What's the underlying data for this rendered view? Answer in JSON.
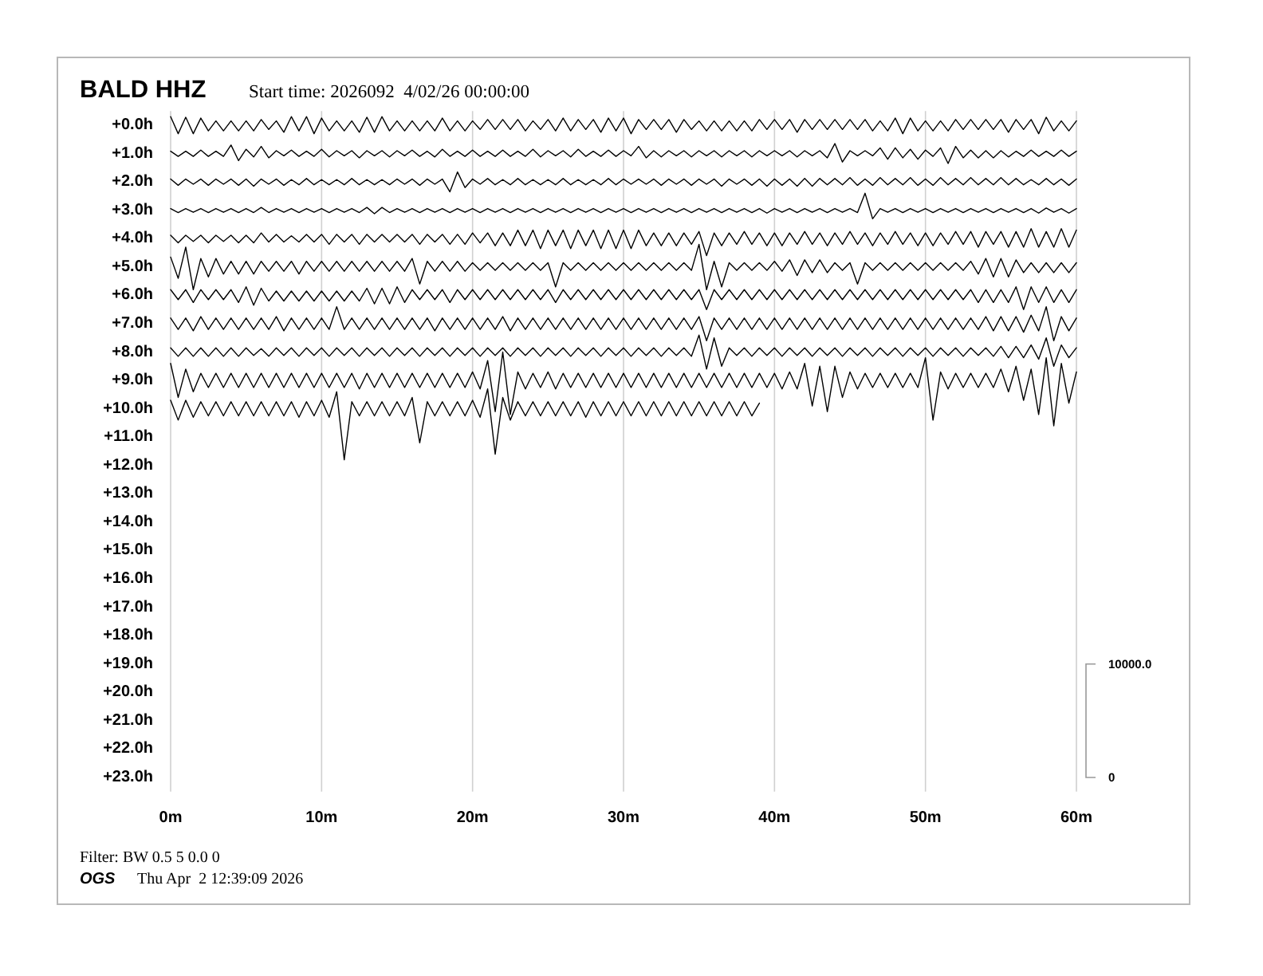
{
  "chart_data": {
    "type": "line",
    "title": "BALD HHZ",
    "subtitle": "Start time: 2026092  4/02/26 00:00:00",
    "annotations": [
      "Filter: BW 0.5 5 0.0 0",
      "OGS",
      "Thu Apr  2 12:39:09 2026"
    ],
    "x": [
      0,
      0.5,
      1,
      1.5,
      2,
      2.5,
      3,
      3.5,
      4,
      4.5,
      5,
      5.5,
      6,
      6.5,
      7,
      7.5,
      8,
      8.5,
      9,
      9.5,
      10,
      10.5,
      11,
      11.5,
      12,
      12.5,
      13,
      13.5,
      14,
      14.5,
      15,
      15.5,
      16,
      16.5,
      17,
      17.5,
      18,
      18.5,
      19,
      19.5,
      20,
      20.5,
      21,
      21.5,
      22,
      22.5,
      23,
      23.5,
      24,
      24.5,
      25,
      25.5,
      26,
      26.5,
      27,
      27.5,
      28,
      28.5,
      29,
      29.5,
      30,
      30.5,
      31,
      31.5,
      32,
      32.5,
      33,
      33.5,
      34,
      34.5,
      35,
      35.5,
      36,
      36.5,
      37,
      37.5,
      38,
      38.5,
      39,
      39.5,
      40,
      40.5,
      41,
      41.5,
      42,
      42.5,
      43,
      43.5,
      44,
      44.5,
      45,
      45.5,
      46,
      46.5,
      47,
      47.5,
      48,
      48.5,
      49,
      49.5,
      50,
      50.5,
      51,
      51.5,
      52,
      52.5,
      53,
      53.5,
      54,
      54.5,
      55,
      55.5,
      56,
      56.5,
      57,
      57.5,
      58,
      58.5,
      59,
      59.5,
      60
    ],
    "xlim": [
      0,
      60
    ],
    "xticks": [
      {
        "value": 0,
        "label": "0m"
      },
      {
        "value": 10,
        "label": "10m"
      },
      {
        "value": 20,
        "label": "20m"
      },
      {
        "value": 30,
        "label": "30m"
      },
      {
        "value": 40,
        "label": "40m"
      },
      {
        "value": 50,
        "label": "50m"
      },
      {
        "value": 60,
        "label": "60m"
      }
    ],
    "ylim": [
      23.5,
      -0.5
    ],
    "yticks": [
      {
        "value": 0,
        "label": "+0.0h"
      },
      {
        "value": 1,
        "label": "+1.0h"
      },
      {
        "value": 2,
        "label": "+2.0h"
      },
      {
        "value": 3,
        "label": "+3.0h"
      },
      {
        "value": 4,
        "label": "+4.0h"
      },
      {
        "value": 5,
        "label": "+5.0h"
      },
      {
        "value": 6,
        "label": "+6.0h"
      },
      {
        "value": 7,
        "label": "+7.0h"
      },
      {
        "value": 8,
        "label": "+8.0h"
      },
      {
        "value": 9,
        "label": "+9.0h"
      },
      {
        "value": 10,
        "label": "+10.0h"
      },
      {
        "value": 11,
        "label": "+11.0h"
      },
      {
        "value": 12,
        "label": "+12.0h"
      },
      {
        "value": 13,
        "label": "+13.0h"
      },
      {
        "value": 14,
        "label": "+14.0h"
      },
      {
        "value": 15,
        "label": "+15.0h"
      },
      {
        "value": 16,
        "label": "+16.0h"
      },
      {
        "value": 17,
        "label": "+17.0h"
      },
      {
        "value": 18,
        "label": "+18.0h"
      },
      {
        "value": 19,
        "label": "+19.0h"
      },
      {
        "value": 20,
        "label": "+20.0h"
      },
      {
        "value": 21,
        "label": "+21.0h"
      },
      {
        "value": 22,
        "label": "+22.0h"
      },
      {
        "value": 23,
        "label": "+23.0h"
      }
    ],
    "y2lim": [
      -1250,
      58750
    ],
    "y2ticks": [
      0,
      {
        "value": 10000,
        "label": "10000.0"
      }
    ],
    "grid": "x",
    "series": [
      {
        "color": "#000000",
        "values": [
          -0.3,
          0.3,
          -0.28,
          0.3,
          -0.25,
          0.2,
          -0.15,
          0.2,
          -0.15,
          0.2,
          -0.15,
          0.2,
          -0.2,
          0.15,
          -0.15,
          0.25,
          -0.3,
          0.2,
          -0.3,
          0.3,
          -0.25,
          0.2,
          -0.15,
          0.2,
          -0.15,
          0.25,
          -0.28,
          0.25,
          -0.3,
          0.2,
          -0.15,
          0.2,
          -0.15,
          0.2,
          -0.15,
          0.2,
          -0.25,
          0.2,
          -0.15,
          0.2,
          -0.15,
          0.15,
          -0.2,
          0.15,
          -0.2,
          0.15,
          -0.2,
          0.2,
          -0.15,
          0.15,
          -0.2,
          0.2,
          -0.25,
          0.2,
          -0.2,
          0.15,
          -0.2,
          0.25,
          -0.25,
          0.2,
          -0.25,
          0.3,
          -0.2,
          0.15,
          -0.2,
          0.15,
          -0.2,
          0.25,
          -0.2,
          0.15,
          -0.15,
          0.2,
          -0.15,
          0.2,
          -0.15,
          0.2,
          -0.15,
          0.2,
          -0.2,
          0.15,
          -0.2,
          0.15,
          -0.2,
          0.25,
          -0.2,
          0.15,
          -0.2,
          0.15,
          -0.2,
          0.15,
          -0.2,
          0.15,
          -0.2,
          0.2,
          -0.15,
          0.2,
          -0.25,
          0.3,
          -0.25,
          0.2,
          -0.15,
          0.2,
          -0.15,
          0.2,
          -0.2,
          0.15,
          -0.2,
          0.15,
          -0.2,
          0.15,
          -0.2,
          0.25,
          -0.2,
          0.15,
          -0.2,
          0.3,
          -0.28,
          0.2,
          -0.15,
          0.2,
          -0.15
        ]
      },
      {
        "color": "#000000",
        "values": [
          0.92,
          1.1,
          0.92,
          1.1,
          0.88,
          1.1,
          0.92,
          1.1,
          0.7,
          1.25,
          0.85,
          1.12,
          0.75,
          1.15,
          0.9,
          1.08,
          0.88,
          1.1,
          0.92,
          1.1,
          0.85,
          1.12,
          0.9,
          1.08,
          0.9,
          1.15,
          0.9,
          1.08,
          0.9,
          1.12,
          0.9,
          1.08,
          0.88,
          1.1,
          0.92,
          1.12,
          0.85,
          1.1,
          0.92,
          1.1,
          0.88,
          1.1,
          0.92,
          1.1,
          0.88,
          1.1,
          0.92,
          1.1,
          0.85,
          1.12,
          0.9,
          1.08,
          0.9,
          1.12,
          0.85,
          1.1,
          0.92,
          1.1,
          0.88,
          1.1,
          0.9,
          1.08,
          0.75,
          1.15,
          0.9,
          1.12,
          0.9,
          1.08,
          0.9,
          1.12,
          0.9,
          1.08,
          0.9,
          1.12,
          0.9,
          1.08,
          0.9,
          1.12,
          0.9,
          1.08,
          0.9,
          1.08,
          0.9,
          1.12,
          0.9,
          1.08,
          0.9,
          1.15,
          0.65,
          1.3,
          0.9,
          1.08,
          0.9,
          1.08,
          0.8,
          1.2,
          0.8,
          1.15,
          0.85,
          1.2,
          0.88,
          1.1,
          0.8,
          1.35,
          0.75,
          1.15,
          0.88,
          1.15,
          0.9,
          1.15,
          0.9,
          1.12,
          0.92,
          1.1,
          0.88,
          1.1,
          0.92,
          1.1,
          0.88,
          1.1,
          0.92
        ]
      },
      {
        "color": "#000000",
        "values": [
          1.9,
          2.12,
          1.9,
          2.08,
          1.9,
          2.12,
          1.9,
          2.08,
          1.9,
          2.12,
          1.9,
          2.15,
          1.9,
          2.08,
          1.9,
          2.12,
          1.92,
          2.1,
          1.88,
          2.1,
          1.92,
          2.1,
          1.92,
          2.1,
          1.88,
          2.1,
          1.92,
          2.1,
          1.92,
          2.1,
          1.9,
          2.08,
          1.9,
          2.12,
          1.9,
          2.08,
          1.9,
          2.35,
          1.65,
          2.2,
          1.9,
          2.08,
          1.88,
          2.1,
          1.92,
          2.1,
          1.88,
          2.1,
          1.92,
          2.1,
          1.92,
          2.1,
          1.88,
          2.1,
          1.92,
          2.1,
          1.92,
          2.1,
          1.88,
          2.1,
          1.9,
          2.08,
          1.9,
          2.08,
          1.9,
          2.12,
          1.9,
          2.08,
          1.9,
          2.12,
          1.9,
          2.08,
          1.9,
          2.15,
          1.9,
          2.08,
          1.9,
          2.12,
          1.9,
          2.15,
          1.9,
          2.12,
          1.9,
          2.15,
          1.88,
          2.15,
          1.88,
          2.1,
          1.88,
          2.1,
          1.85,
          2.12,
          1.9,
          2.12,
          1.85,
          2.1,
          1.88,
          2.1,
          1.85,
          2.12,
          1.9,
          2.12,
          1.85,
          2.1,
          1.88,
          2.1,
          1.85,
          2.1,
          1.88,
          2.1,
          1.85,
          2.1,
          1.88,
          2.1,
          1.92,
          2.1,
          1.88,
          2.1,
          1.9,
          2.12,
          1.9
        ]
      },
      {
        "color": "#000000",
        "values": [
          2.94,
          3.08,
          2.94,
          3.07,
          2.94,
          3.08,
          2.94,
          3.07,
          2.94,
          3.08,
          2.94,
          3.08,
          2.9,
          3.08,
          2.94,
          3.07,
          2.94,
          3.08,
          2.94,
          3.07,
          2.94,
          3.08,
          2.94,
          3.07,
          2.94,
          3.08,
          2.9,
          3.12,
          2.9,
          3.08,
          2.94,
          3.07,
          2.94,
          3.08,
          2.94,
          3.07,
          2.94,
          3.08,
          2.94,
          3.07,
          2.94,
          3.08,
          2.94,
          3.07,
          2.94,
          3.08,
          2.94,
          3.07,
          2.94,
          3.08,
          2.94,
          3.07,
          2.94,
          3.08,
          2.94,
          3.07,
          2.94,
          3.08,
          2.94,
          3.07,
          2.94,
          3.08,
          2.94,
          3.07,
          2.94,
          3.08,
          2.94,
          3.07,
          2.94,
          3.08,
          2.94,
          3.07,
          2.94,
          3.08,
          2.94,
          3.07,
          2.94,
          3.08,
          2.94,
          3.1,
          2.94,
          3.07,
          2.94,
          3.08,
          2.94,
          3.07,
          2.94,
          3.08,
          2.94,
          3.07,
          2.94,
          3.08,
          2.4,
          3.3,
          2.94,
          3.07,
          2.94,
          3.08,
          2.94,
          3.07,
          2.94,
          3.08,
          2.94,
          3.07,
          2.94,
          3.08,
          2.94,
          3.07,
          2.94,
          3.08,
          2.94,
          3.07,
          2.94,
          3.08,
          2.94,
          3.1,
          2.92,
          3.07,
          2.94,
          3.1,
          2.94
        ]
      },
      {
        "color": "#000000",
        "values": [
          3.88,
          4.15,
          3.88,
          4.1,
          3.88,
          4.15,
          3.88,
          4.1,
          3.88,
          4.15,
          3.88,
          4.15,
          3.8,
          4.12,
          3.85,
          4.12,
          3.9,
          4.12,
          3.85,
          4.12,
          3.85,
          4.2,
          3.85,
          4.12,
          3.85,
          4.2,
          3.85,
          4.12,
          3.85,
          4.12,
          3.85,
          4.12,
          3.85,
          4.2,
          3.85,
          4.12,
          3.85,
          4.2,
          3.85,
          4.2,
          3.8,
          4.15,
          3.8,
          4.25,
          3.8,
          4.25,
          3.7,
          4.25,
          3.7,
          4.35,
          3.7,
          4.25,
          3.7,
          4.35,
          3.7,
          4.25,
          3.7,
          4.35,
          3.7,
          4.35,
          3.7,
          4.35,
          3.7,
          4.25,
          3.8,
          4.25,
          3.8,
          4.25,
          3.8,
          4.2,
          3.75,
          4.6,
          3.8,
          4.25,
          3.8,
          4.2,
          3.75,
          4.2,
          3.8,
          4.25,
          3.8,
          4.25,
          3.8,
          4.2,
          3.75,
          4.2,
          3.8,
          4.25,
          3.8,
          4.2,
          3.75,
          4.2,
          3.8,
          4.25,
          3.8,
          4.2,
          3.75,
          4.2,
          3.8,
          4.25,
          3.8,
          4.25,
          3.8,
          4.2,
          3.75,
          4.2,
          3.75,
          4.3,
          3.75,
          4.2,
          3.75,
          4.3,
          3.75,
          4.3,
          3.65,
          4.3,
          3.75,
          4.3,
          3.65,
          4.3,
          3.7
        ]
      },
      {
        "color": "#000000",
        "values": [
          4.65,
          5.4,
          4.3,
          5.8,
          4.7,
          5.35,
          4.7,
          5.25,
          4.8,
          5.25,
          4.8,
          5.25,
          4.8,
          5.15,
          4.8,
          5.15,
          4.8,
          5.25,
          4.8,
          5.15,
          4.8,
          5.15,
          4.8,
          5.15,
          4.8,
          5.15,
          4.8,
          5.15,
          4.8,
          5.15,
          4.8,
          5.15,
          4.7,
          5.6,
          4.8,
          5.15,
          4.8,
          5.15,
          4.8,
          5.15,
          4.85,
          5.12,
          4.85,
          5.12,
          4.85,
          5.12,
          4.85,
          5.12,
          4.85,
          5.12,
          4.85,
          5.7,
          4.85,
          5.12,
          4.85,
          5.12,
          4.85,
          5.12,
          4.85,
          5.12,
          4.85,
          5.12,
          4.85,
          5.12,
          4.85,
          5.12,
          4.85,
          5.12,
          4.85,
          5.12,
          4.2,
          5.8,
          4.8,
          5.7,
          4.85,
          5.12,
          4.85,
          5.12,
          4.85,
          5.12,
          4.8,
          5.15,
          4.75,
          5.3,
          4.75,
          5.2,
          4.75,
          5.2,
          4.85,
          5.12,
          4.85,
          5.6,
          4.85,
          5.12,
          4.85,
          5.12,
          4.85,
          5.12,
          4.85,
          5.12,
          4.85,
          5.12,
          4.85,
          5.12,
          4.85,
          5.12,
          4.8,
          5.25,
          4.7,
          5.35,
          4.7,
          5.35,
          4.75,
          5.2,
          4.85,
          5.2,
          4.85,
          5.2,
          4.85,
          5.2,
          4.85
        ]
      },
      {
        "color": "#000000",
        "values": [
          5.8,
          6.15,
          5.8,
          6.25,
          5.8,
          6.15,
          5.8,
          6.15,
          5.8,
          6.25,
          5.7,
          6.35,
          5.75,
          6.2,
          5.85,
          6.2,
          5.85,
          6.2,
          5.85,
          6.2,
          5.85,
          6.2,
          5.85,
          6.2,
          5.85,
          6.2,
          5.75,
          6.3,
          5.75,
          6.3,
          5.7,
          6.25,
          5.8,
          6.15,
          5.8,
          6.15,
          5.8,
          6.25,
          5.8,
          6.15,
          5.8,
          6.15,
          5.8,
          6.15,
          5.8,
          6.15,
          5.8,
          6.15,
          5.8,
          6.15,
          5.8,
          6.25,
          5.8,
          6.15,
          5.8,
          6.15,
          5.8,
          6.15,
          5.8,
          6.15,
          5.8,
          6.15,
          5.8,
          6.15,
          5.8,
          6.15,
          5.8,
          6.15,
          5.8,
          6.15,
          5.8,
          6.5,
          5.8,
          6.15,
          5.8,
          6.15,
          5.8,
          6.15,
          5.8,
          6.15,
          5.8,
          6.15,
          5.8,
          6.15,
          5.8,
          6.15,
          5.8,
          6.15,
          5.8,
          6.15,
          5.8,
          6.15,
          5.8,
          6.15,
          5.8,
          6.15,
          5.8,
          6.15,
          5.8,
          6.15,
          5.8,
          6.15,
          5.8,
          6.15,
          5.8,
          6.15,
          5.8,
          6.25,
          5.8,
          6.25,
          5.8,
          6.25,
          5.7,
          6.5,
          5.7,
          6.25,
          5.7,
          6.25,
          5.8,
          6.25,
          5.8
        ]
      },
      {
        "color": "#000000",
        "values": [
          6.8,
          7.2,
          6.8,
          7.25,
          6.75,
          7.2,
          6.8,
          7.2,
          6.8,
          7.2,
          6.8,
          7.2,
          6.8,
          7.2,
          6.75,
          7.25,
          6.8,
          7.2,
          6.8,
          7.2,
          6.8,
          7.2,
          6.4,
          7.2,
          6.8,
          7.2,
          6.8,
          7.2,
          6.8,
          7.2,
          6.8,
          7.2,
          6.8,
          7.2,
          6.8,
          7.25,
          6.8,
          7.2,
          6.8,
          7.2,
          6.8,
          7.2,
          6.8,
          7.2,
          6.75,
          7.25,
          6.8,
          7.2,
          6.8,
          7.2,
          6.8,
          7.2,
          6.8,
          7.2,
          6.8,
          7.2,
          6.8,
          7.2,
          6.8,
          7.2,
          6.8,
          7.2,
          6.8,
          7.2,
          6.8,
          7.2,
          6.8,
          7.2,
          6.8,
          7.2,
          6.75,
          7.6,
          6.8,
          7.2,
          6.8,
          7.2,
          6.8,
          7.2,
          6.8,
          7.2,
          6.8,
          7.2,
          6.8,
          7.2,
          6.8,
          7.2,
          6.8,
          7.2,
          6.8,
          7.2,
          6.8,
          7.2,
          6.8,
          7.2,
          6.8,
          7.2,
          6.8,
          7.2,
          6.8,
          7.2,
          6.8,
          7.2,
          6.8,
          7.2,
          6.8,
          7.2,
          6.8,
          7.2,
          6.75,
          7.25,
          6.75,
          7.25,
          6.75,
          7.3,
          6.7,
          7.25,
          6.4,
          7.6,
          6.75,
          7.25,
          6.8
        ]
      },
      {
        "color": "#000000",
        "values": [
          7.85,
          8.15,
          7.85,
          8.15,
          7.85,
          8.15,
          7.85,
          8.15,
          7.85,
          8.15,
          7.85,
          8.12,
          7.88,
          8.15,
          7.85,
          8.12,
          7.85,
          8.15,
          7.85,
          8.12,
          7.85,
          8.15,
          7.85,
          8.12,
          7.85,
          8.15,
          7.85,
          8.12,
          7.85,
          8.15,
          7.85,
          8.12,
          7.85,
          8.15,
          7.85,
          8.12,
          7.85,
          8.15,
          7.85,
          8.12,
          7.85,
          8.15,
          7.85,
          8.12,
          7.85,
          8.15,
          7.85,
          8.12,
          7.85,
          8.15,
          7.85,
          8.12,
          7.85,
          8.15,
          7.85,
          8.12,
          7.85,
          8.15,
          7.85,
          8.12,
          7.85,
          8.15,
          7.85,
          8.12,
          7.85,
          8.15,
          7.85,
          8.12,
          7.85,
          8.15,
          7.4,
          8.6,
          7.5,
          8.5,
          7.85,
          8.12,
          7.85,
          8.15,
          7.85,
          8.12,
          7.85,
          8.15,
          7.85,
          8.12,
          7.85,
          8.15,
          7.85,
          8.12,
          7.85,
          8.15,
          7.85,
          8.12,
          7.85,
          8.15,
          7.85,
          8.12,
          7.85,
          8.15,
          7.85,
          8.12,
          7.85,
          8.15,
          7.85,
          8.12,
          7.85,
          8.15,
          7.85,
          8.12,
          7.85,
          8.15,
          7.8,
          8.2,
          7.8,
          8.2,
          7.75,
          8.25,
          7.5,
          8.5,
          7.75,
          8.2,
          7.85
        ]
      },
      {
        "color": "#000000",
        "values": [
          8.4,
          9.6,
          8.6,
          9.4,
          8.75,
          9.25,
          8.75,
          9.25,
          8.75,
          9.25,
          8.75,
          9.25,
          8.75,
          9.25,
          8.75,
          9.25,
          8.75,
          9.25,
          8.75,
          9.25,
          8.75,
          9.25,
          8.75,
          9.25,
          8.75,
          9.3,
          8.75,
          9.25,
          8.75,
          9.25,
          8.75,
          9.25,
          8.75,
          9.25,
          8.75,
          9.25,
          8.75,
          9.25,
          8.75,
          9.25,
          8.7,
          9.3,
          8.3,
          10.1,
          8.0,
          10.2,
          8.7,
          9.3,
          8.75,
          9.25,
          8.7,
          9.3,
          8.75,
          9.25,
          8.75,
          9.25,
          8.75,
          9.25,
          8.75,
          9.25,
          8.75,
          9.25,
          8.75,
          9.25,
          8.75,
          9.25,
          8.75,
          9.25,
          8.75,
          9.25,
          8.75,
          9.25,
          8.75,
          9.25,
          8.75,
          9.25,
          8.75,
          9.25,
          8.75,
          9.25,
          8.75,
          9.3,
          8.7,
          9.3,
          8.4,
          9.9,
          8.5,
          10.1,
          8.5,
          9.6,
          8.7,
          9.3,
          8.75,
          9.25,
          8.75,
          9.25,
          8.75,
          9.25,
          8.75,
          9.25,
          8.2,
          10.4,
          8.7,
          9.3,
          8.75,
          9.25,
          8.75,
          9.25,
          8.75,
          9.25,
          8.6,
          9.4,
          8.5,
          9.7,
          8.6,
          10.2,
          8.2,
          10.6,
          8.4,
          9.8,
          8.7
        ]
      },
      {
        "color": "#000000",
        "values": [
          9.7,
          10.4,
          9.7,
          10.3,
          9.75,
          10.25,
          9.75,
          10.25,
          9.75,
          10.25,
          9.75,
          10.25,
          9.75,
          10.25,
          9.75,
          10.25,
          9.75,
          10.3,
          9.75,
          10.25,
          9.7,
          10.3,
          9.4,
          11.8,
          9.75,
          10.25,
          9.75,
          10.25,
          9.75,
          10.25,
          9.75,
          10.25,
          9.6,
          11.2,
          9.75,
          10.25,
          9.75,
          10.25,
          9.75,
          10.25,
          9.7,
          10.3,
          9.3,
          11.6,
          9.6,
          10.4,
          9.75,
          10.25,
          9.75,
          10.25,
          9.75,
          10.25,
          9.75,
          10.25,
          9.75,
          10.3,
          9.75,
          10.25,
          9.75,
          10.25,
          9.75,
          10.25,
          9.75,
          10.25,
          9.75,
          10.25,
          9.75,
          10.25,
          9.75,
          10.25,
          9.75,
          10.25,
          9.75,
          10.25,
          9.75,
          10.25,
          9.75,
          10.25,
          9.8,
          null,
          null,
          null,
          null,
          null,
          null,
          null,
          null,
          null,
          null,
          null,
          null,
          null,
          null,
          null,
          null,
          null,
          null,
          null,
          null,
          null,
          null,
          null,
          null,
          null,
          null,
          null,
          null,
          null,
          null,
          null,
          null,
          null,
          null,
          null,
          null,
          null,
          null,
          null,
          null,
          null,
          null
        ]
      }
    ]
  }
}
